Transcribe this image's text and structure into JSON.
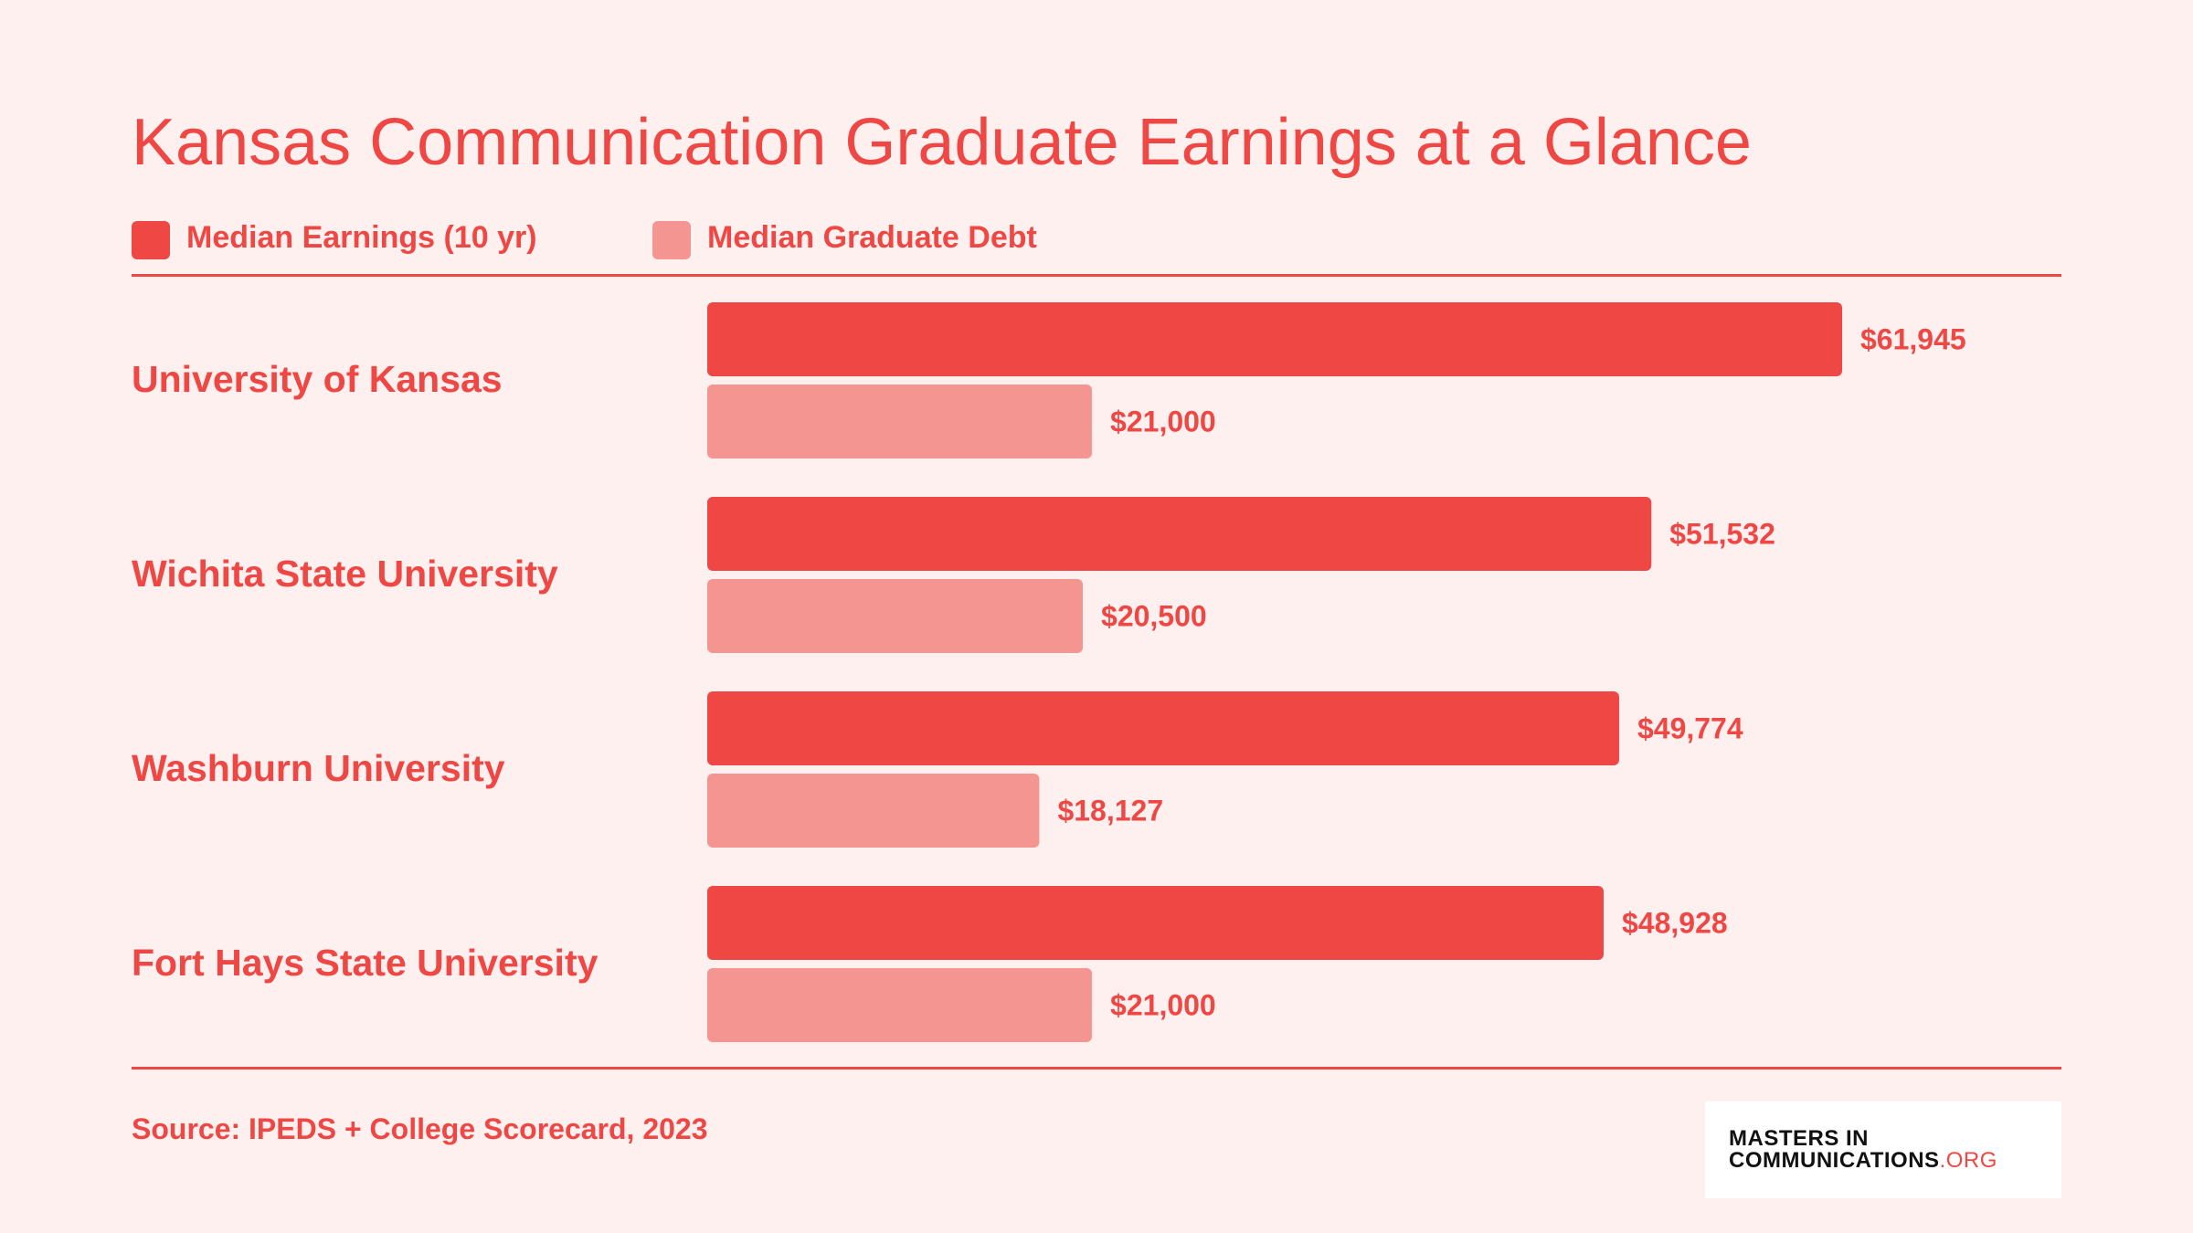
{
  "title": "Kansas Communication Graduate Earnings at a Glance",
  "legend": [
    {
      "label": "Median Earnings (10 yr)",
      "color": "#ee4744"
    },
    {
      "label": "Median Graduate Debt",
      "color": "#f59591"
    }
  ],
  "source": "Source: IPEDS + College Scorecard, 2023",
  "logo": {
    "line1": "MASTERS IN",
    "line2_main": "COMMUNICATIONS",
    "line2_accent": ".ORG"
  },
  "chart_data": {
    "type": "bar",
    "orientation": "horizontal",
    "title": "Kansas Communication Graduate Earnings at a Glance",
    "categories": [
      "University of Kansas",
      "Wichita State University",
      "Washburn University",
      "Fort Hays State University"
    ],
    "series": [
      {
        "name": "Median Earnings (10 yr)",
        "values": [
          61945,
          51532,
          49774,
          48928
        ],
        "labels": [
          "$61,945",
          "$51,532",
          "$49,774",
          "$48,928"
        ],
        "color": "#ee4744"
      },
      {
        "name": "Median Graduate Debt",
        "values": [
          21000,
          20500,
          18127,
          21000
        ],
        "labels": [
          "$21,000",
          "$20,500",
          "$18,127",
          "$21,000"
        ],
        "color": "#f59591"
      }
    ],
    "legend_position": "top-left",
    "grid": false
  }
}
